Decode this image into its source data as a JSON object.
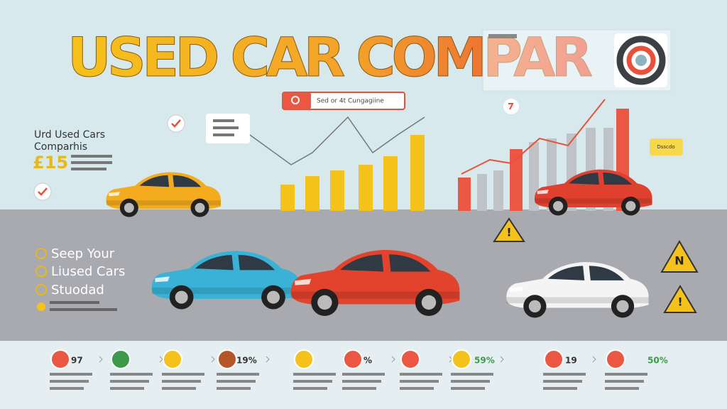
{
  "header": {
    "title": "USED CAR COMPAR"
  },
  "search": {
    "placeholder": "Sed or 4t Cungagiine"
  },
  "left_panel": {
    "heading": [
      "Urd Used Cars",
      "Comparhis"
    ],
    "price": "£15"
  },
  "list": [
    "Seep Your",
    "Liused Cars",
    "Stuodad"
  ],
  "tooltip": "Dsscdo",
  "warning_label": "N",
  "stats": [
    "97",
    "19%",
    "%",
    "59%",
    "19",
    "50%"
  ]
}
